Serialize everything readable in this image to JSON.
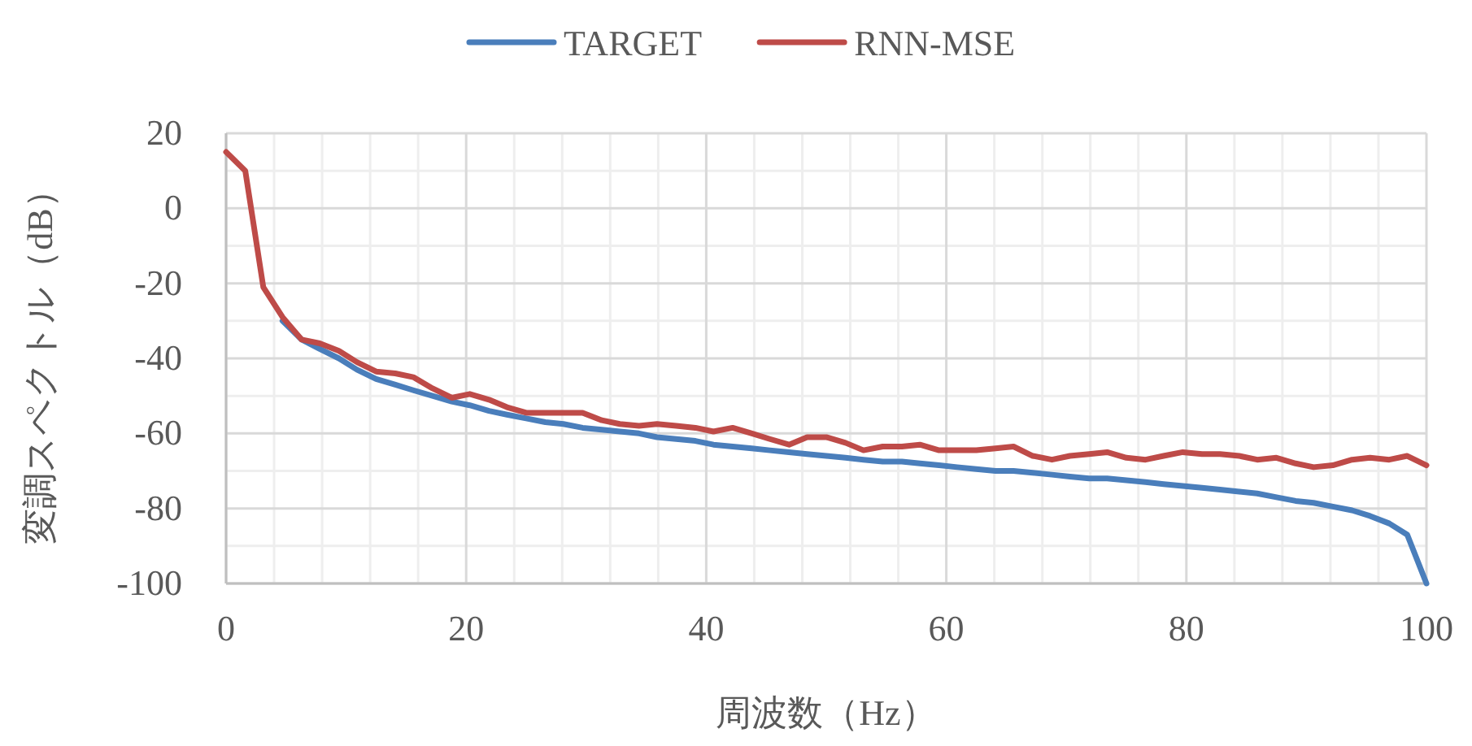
{
  "chart_data": {
    "type": "line",
    "xlabel": "周波数（Hz）",
    "ylabel": "変調スペクトル（dB）",
    "x": [
      0,
      1.6,
      3.1,
      4.7,
      6.3,
      7.8,
      9.4,
      10.9,
      12.5,
      14.1,
      15.6,
      17.2,
      18.8,
      20.3,
      21.9,
      23.4,
      25,
      26.6,
      28.1,
      29.7,
      31.3,
      32.8,
      34.4,
      35.9,
      37.5,
      39.1,
      40.6,
      42.2,
      43.8,
      45.3,
      46.9,
      48.4,
      50,
      51.6,
      53.1,
      54.7,
      56.3,
      57.8,
      59.4,
      60.9,
      62.5,
      64.1,
      65.6,
      67.2,
      68.8,
      70.3,
      71.9,
      73.4,
      75,
      76.6,
      78.1,
      79.7,
      81.3,
      82.8,
      84.4,
      85.9,
      87.5,
      89.1,
      90.6,
      92.2,
      93.8,
      95.3,
      96.9,
      98.4,
      100
    ],
    "series": [
      {
        "name": "TARGET",
        "color": "#4a7ebb",
        "values": [
          null,
          null,
          null,
          -30,
          -35,
          -37.5,
          -40,
          -43,
          -45.5,
          -47,
          -48.5,
          -50,
          -51.5,
          -52.5,
          -54,
          -55,
          -56,
          -57,
          -57.5,
          -58.5,
          -59,
          -59.5,
          -60,
          -61,
          -61.5,
          -62,
          -63,
          -63.5,
          -64,
          -64.5,
          -65,
          -65.5,
          -66,
          -66.5,
          -67,
          -67.5,
          -67.5,
          -68,
          -68.5,
          -69,
          -69.5,
          -70,
          -70,
          -70.5,
          -71,
          -71.5,
          -72,
          -72,
          -72.5,
          -73,
          -73.5,
          -74,
          -74.5,
          -75,
          -75.5,
          -76,
          -77,
          -78,
          -78.5,
          -79.5,
          -80.5,
          -82,
          -84,
          -87,
          -100
        ]
      },
      {
        "name": "RNN-MSE",
        "color": "#be4b48",
        "values": [
          15,
          10,
          -21,
          -29,
          -35,
          -36,
          -38,
          -41,
          -43.5,
          -44,
          -45,
          -48,
          -50.5,
          -49.5,
          -51,
          -53,
          -54.5,
          -54.5,
          -54.5,
          -54.5,
          -56.5,
          -57.5,
          -58,
          -57.5,
          -58,
          -58.5,
          -59.5,
          -58.5,
          -60,
          -61.5,
          -63,
          -61,
          -61,
          -62.5,
          -64.5,
          -63.5,
          -63.5,
          -63,
          -64.5,
          -64.5,
          -64.5,
          -64,
          -63.5,
          -66,
          -67,
          -66,
          -65.5,
          -65,
          -66.5,
          -67,
          -66,
          -65,
          -65.5,
          -65.5,
          -66,
          -67,
          -66.5,
          -68,
          -69,
          -68.5,
          -67,
          -66.5,
          -67,
          -66,
          -68.5
        ]
      }
    ],
    "xlim": [
      0,
      100
    ],
    "ylim": [
      -100,
      20
    ],
    "xticks": [
      0,
      20,
      40,
      60,
      80,
      100
    ],
    "yticks": [
      -100,
      -80,
      -60,
      -40,
      -20,
      0,
      20
    ],
    "grid": true,
    "legend": "top",
    "line_style": "solid"
  }
}
